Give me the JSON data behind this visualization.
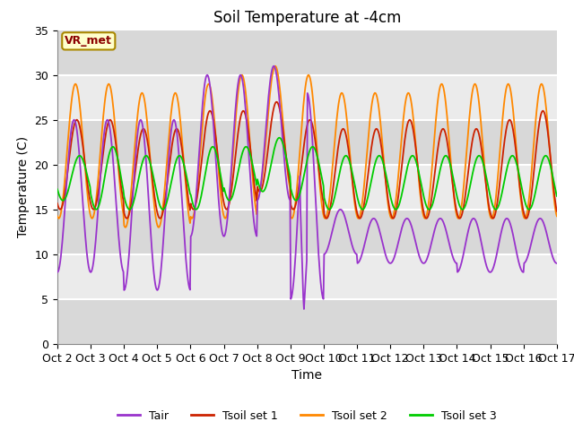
{
  "title": "Soil Temperature at -4cm",
  "xlabel": "Time",
  "ylabel": "Temperature (C)",
  "ylim": [
    0,
    35
  ],
  "xtick_labels": [
    "Oct 2",
    "Oct 3",
    "Oct 4",
    "Oct 5",
    "Oct 6",
    "Oct 7",
    "Oct 8",
    "Oct 9",
    "Oct 10",
    "Oct 11",
    "Oct 12",
    "Oct 13",
    "Oct 14",
    "Oct 15",
    "Oct 16",
    "Oct 17"
  ],
  "annotation": "VR_met",
  "line_colors": {
    "Tair": "#9933cc",
    "Tsoil1": "#cc2200",
    "Tsoil2": "#ff8800",
    "Tsoil3": "#00cc00"
  },
  "band_colors": [
    "#ffffff",
    "#d8d8d8"
  ],
  "legend_labels": [
    "Tair",
    "Tsoil set 1",
    "Tsoil set 2",
    "Tsoil set 3"
  ],
  "title_fontsize": 12,
  "axis_fontsize": 10,
  "tick_fontsize": 9,
  "legend_fontsize": 9
}
